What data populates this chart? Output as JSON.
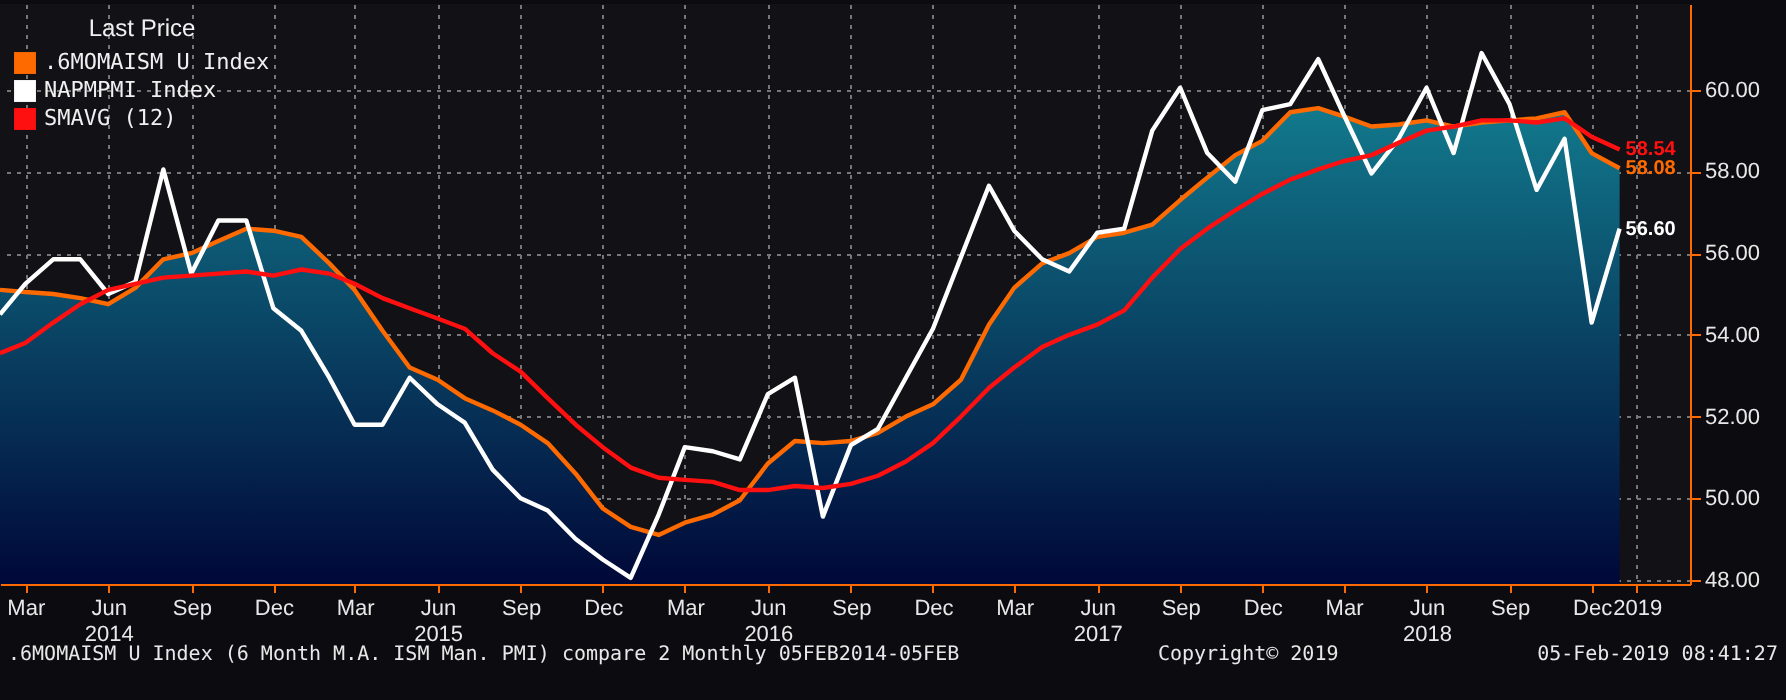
{
  "chart_data": {
    "type": "line",
    "legend_title": "Last Price",
    "legend": "top left",
    "grid": true,
    "annotations": [
      ".6MOMAISM U Index (6 Month M.A. ISM Man. PMI) compare 2  Monthly 05FEB2014-05FEB",
      "Copyright© 2019",
      "05-Feb-2019 08:41:27"
    ],
    "x": [
      "2014-02",
      "2014-03",
      "2014-04",
      "2014-05",
      "2014-06",
      "2014-07",
      "2014-08",
      "2014-09",
      "2014-10",
      "2014-11",
      "2014-12",
      "2015-01",
      "2015-02",
      "2015-03",
      "2015-04",
      "2015-05",
      "2015-06",
      "2015-07",
      "2015-08",
      "2015-09",
      "2015-10",
      "2015-11",
      "2015-12",
      "2016-01",
      "2016-02",
      "2016-03",
      "2016-04",
      "2016-05",
      "2016-06",
      "2016-07",
      "2016-08",
      "2016-09",
      "2016-10",
      "2016-11",
      "2016-12",
      "2017-01",
      "2017-02",
      "2017-03",
      "2017-04",
      "2017-05",
      "2017-06",
      "2017-07",
      "2017-08",
      "2017-09",
      "2017-10",
      "2017-11",
      "2017-12",
      "2018-01",
      "2018-02",
      "2018-03",
      "2018-04",
      "2018-05",
      "2018-06",
      "2018-07",
      "2018-08",
      "2018-09",
      "2018-10",
      "2018-11",
      "2018-12",
      "2019-01"
    ],
    "xlim": [
      "2014-02-01",
      "2019-03-20"
    ],
    "xticks": [
      {
        "value": "2014-03",
        "label": "Mar"
      },
      {
        "value": "2014-06",
        "label": "Jun\n2014"
      },
      {
        "value": "2014-09",
        "label": "Sep"
      },
      {
        "value": "2014-12",
        "label": "Dec"
      },
      {
        "value": "2015-03",
        "label": "Mar"
      },
      {
        "value": "2015-06",
        "label": "Jun\n2015"
      },
      {
        "value": "2015-09",
        "label": "Sep"
      },
      {
        "value": "2015-12",
        "label": "Dec"
      },
      {
        "value": "2016-03",
        "label": "Mar"
      },
      {
        "value": "2016-06",
        "label": "Jun\n2016"
      },
      {
        "value": "2016-09",
        "label": "Sep"
      },
      {
        "value": "2016-12",
        "label": "Dec"
      },
      {
        "value": "2017-03",
        "label": "Mar"
      },
      {
        "value": "2017-06",
        "label": "Jun\n2017"
      },
      {
        "value": "2017-09",
        "label": "Sep"
      },
      {
        "value": "2017-12",
        "label": "Dec"
      },
      {
        "value": "2018-03",
        "label": "Mar"
      },
      {
        "value": "2018-06",
        "label": "Jun\n2018"
      },
      {
        "value": "2018-09",
        "label": "Sep"
      },
      {
        "value": "2018-12",
        "label": "Dec"
      },
      {
        "value": "2019-01-20",
        "label": "2019"
      }
    ],
    "ylim": [
      47.9,
      62.1
    ],
    "yticks": [
      {
        "value": 48,
        "label": "48.00"
      },
      {
        "value": 50,
        "label": "50.00"
      },
      {
        "value": 52,
        "label": "52.00"
      },
      {
        "value": 54,
        "label": "54.00"
      },
      {
        "value": 56,
        "label": "56.00"
      },
      {
        "value": 58,
        "label": "58.00"
      },
      {
        "value": 60,
        "label": "60.00"
      }
    ],
    "series": [
      {
        "name": ".6MOMAISM U Index",
        "type": "area",
        "color": "#ff6a00",
        "values": [
          55.1,
          55.05,
          55.0,
          54.9,
          54.75,
          55.15,
          55.85,
          56.0,
          56.3,
          56.6,
          56.55,
          56.4,
          55.75,
          55.1,
          54.1,
          53.2,
          52.9,
          52.45,
          52.15,
          51.8,
          51.35,
          50.6,
          49.75,
          49.3,
          49.1,
          49.4,
          49.6,
          49.95,
          50.85,
          51.4,
          51.35,
          51.4,
          51.6,
          52.0,
          52.3,
          52.9,
          54.25,
          55.15,
          55.75,
          56.0,
          56.4,
          56.5,
          56.7,
          57.3,
          57.85,
          58.4,
          58.75,
          59.45,
          59.55,
          59.35,
          59.1,
          59.15,
          59.25,
          59.1,
          59.2,
          59.25,
          59.3,
          59.45,
          58.45,
          58.08
        ],
        "value_labels": [
          null,
          null,
          null,
          null,
          null,
          null,
          null,
          null,
          null,
          null,
          null,
          null,
          null,
          null,
          null,
          null,
          null,
          null,
          null,
          null,
          null,
          null,
          null,
          null,
          null,
          null,
          null,
          null,
          null,
          null,
          null,
          null,
          null,
          null,
          null,
          null,
          null,
          null,
          null,
          null,
          null,
          null,
          null,
          null,
          null,
          null,
          null,
          null,
          null,
          null,
          null,
          null,
          null,
          null,
          null,
          null,
          null,
          null,
          null,
          "58.08"
        ]
      },
      {
        "name": "NAPMPMI Index",
        "color": "#ffffff",
        "values": [
          54.5,
          55.25,
          55.85,
          55.85,
          55.0,
          55.3,
          58.05,
          55.5,
          56.8,
          56.8,
          54.65,
          54.1,
          52.95,
          51.8,
          51.8,
          52.95,
          52.3,
          51.85,
          50.7,
          50.0,
          49.7,
          49.0,
          48.5,
          48.05,
          49.6,
          51.25,
          51.15,
          50.95,
          52.55,
          52.95,
          49.55,
          51.3,
          51.7,
          52.95,
          54.15,
          55.9,
          57.65,
          56.55,
          55.85,
          55.55,
          56.5,
          56.6,
          59.0,
          60.05,
          58.45,
          57.75,
          59.5,
          59.65,
          60.75,
          59.4,
          57.95,
          58.8,
          60.05,
          58.45,
          60.9,
          59.65,
          57.55,
          58.8,
          54.3,
          56.6
        ],
        "value_labels": [
          null,
          null,
          null,
          null,
          null,
          null,
          null,
          null,
          null,
          null,
          null,
          null,
          null,
          null,
          null,
          null,
          null,
          null,
          null,
          null,
          null,
          null,
          null,
          null,
          null,
          null,
          null,
          null,
          null,
          null,
          null,
          null,
          null,
          null,
          null,
          null,
          null,
          null,
          null,
          null,
          null,
          null,
          null,
          null,
          null,
          null,
          null,
          null,
          null,
          null,
          null,
          null,
          null,
          null,
          null,
          null,
          null,
          null,
          null,
          "56.60"
        ]
      },
      {
        "name": "SMAVG (12)",
        "color": "#ff1010",
        "values": [
          53.55,
          53.8,
          54.3,
          54.75,
          55.1,
          55.25,
          55.4,
          55.45,
          55.5,
          55.55,
          55.45,
          55.6,
          55.5,
          55.25,
          54.9,
          54.65,
          54.4,
          54.15,
          53.55,
          53.1,
          52.45,
          51.8,
          51.25,
          50.75,
          50.5,
          50.45,
          50.4,
          50.2,
          50.2,
          50.3,
          50.25,
          50.35,
          50.55,
          50.9,
          51.35,
          52.0,
          52.7,
          53.2,
          53.7,
          54.0,
          54.25,
          54.6,
          55.4,
          56.1,
          56.6,
          57.05,
          57.45,
          57.8,
          58.05,
          58.25,
          58.4,
          58.7,
          59.0,
          59.1,
          59.25,
          59.25,
          59.2,
          59.3,
          58.85,
          58.54
        ],
        "value_labels": [
          null,
          null,
          null,
          null,
          null,
          null,
          null,
          null,
          null,
          null,
          null,
          null,
          null,
          null,
          null,
          null,
          null,
          null,
          null,
          null,
          null,
          null,
          null,
          null,
          null,
          null,
          null,
          null,
          null,
          null,
          null,
          null,
          null,
          null,
          null,
          null,
          null,
          null,
          null,
          null,
          null,
          null,
          null,
          null,
          null,
          null,
          null,
          null,
          null,
          null,
          null,
          null,
          null,
          null,
          null,
          null,
          null,
          null,
          null,
          "58.54"
        ]
      }
    ]
  }
}
